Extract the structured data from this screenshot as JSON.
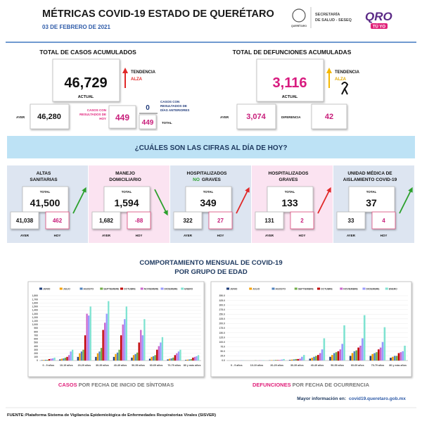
{
  "header": {
    "title": "MÉTRICAS COVID-19 ESTADO DE QUERÉTARO",
    "date": "03 DE FEBRERO DE 2021",
    "seal_caption": "QUERÉTARO",
    "secretaria": [
      "SECRETARÍA",
      "DE SALUD - SESEQ"
    ],
    "brand": "QRO",
    "brand_sub": "TÚ YO"
  },
  "cases": {
    "title": "TOTAL DE CASOS ACUMULADOS",
    "actual": "46,729",
    "actual_label": "ACTUAL",
    "trend_label": "TENDENCIA",
    "trend": "ALZA",
    "ayer_label": "AYER",
    "ayer": "46,280",
    "today_label": [
      "CASOS CON",
      "RESULTADOS DE",
      "HOY"
    ],
    "today": "449",
    "previous": "0",
    "previous_label": [
      "CASOS CON",
      "RESULTADOS DE",
      "DÍAS ANTERIORES"
    ],
    "total": "449",
    "total_label": "TOTAL"
  },
  "deaths": {
    "title": "TOTAL DE DEFUNCIONES ACUMULADAS",
    "actual": "3,116",
    "actual_label": "ACTUAL",
    "trend_label": "TENDENCIA",
    "trend": "ALZA",
    "ayer_label": "AYER",
    "ayer": "3,074",
    "diff_label": "DIFERENCIA",
    "diff": "42"
  },
  "question": "¿CUÁLES SON LAS CIFRAS AL DÍA DE HOY?",
  "cards": [
    {
      "title": [
        "ALTAS",
        "SANITARIAS"
      ],
      "total_label": "TOTAL",
      "total": "41,500",
      "ayer": "41,038",
      "hoy": "462",
      "ayer_label": "AYER",
      "hoy_label": "HOY",
      "trend": "up",
      "arrow_color": "#2ca02c",
      "bg": "#dde5f1"
    },
    {
      "title": [
        "MANEJO",
        "DOMICILIARIO"
      ],
      "total_label": "TOTAL",
      "total": "1,594",
      "ayer": "1,682",
      "hoy": "-88",
      "ayer_label": "AYER",
      "hoy_label": "HOY",
      "trend": "down",
      "arrow_color": "#2ca02c",
      "bg": "#fbe3f1"
    },
    {
      "title": [
        "HOSPITALIZADOS",
        "GRAVES"
      ],
      "title_accent": "NO",
      "accent_color": "#2ca02c",
      "total_label": "TOTAL",
      "total": "349",
      "ayer": "322",
      "hoy": "27",
      "ayer_label": "AYER",
      "hoy_label": "HOY",
      "trend": "up",
      "arrow_color": "#e02828",
      "bg": "#dde5f1"
    },
    {
      "title": [
        "HOSPITALIZADOS",
        "GRAVES"
      ],
      "total_label": "TOTAL",
      "total": "133",
      "ayer": "131",
      "hoy": "2",
      "ayer_label": "AYER",
      "hoy_label": "HOY",
      "trend": "up",
      "arrow_color": "#e02828",
      "bg": "#fbe3f1"
    },
    {
      "title": [
        "UNIDAD MÉDICA DE",
        "AISLAMIENTO COVID-19"
      ],
      "total_label": "TOTAL",
      "total": "37",
      "ayer": "33",
      "hoy": "4",
      "ayer_label": "AYER",
      "hoy_label": "HOY",
      "trend": "up",
      "arrow_color": "#2ca02c",
      "bg": "#dde5f1"
    }
  ],
  "section_title": [
    "COMPORTAMIENTO MENSUAL DE COVID-19",
    "POR GRUPO DE EDAD"
  ],
  "chart_data": [
    {
      "type": "bar",
      "caption_accent": "CASOS",
      "caption": " POR FECHA DE INICIO DE SÍNTOMAS",
      "categories": [
        "0 - 9 años",
        "10-19 años",
        "20-29 años",
        "30-39 años",
        "40-49 años",
        "50-59 años",
        "60-69 años",
        "70-79 años",
        "80 y más años"
      ],
      "ylim": [
        0,
        1800
      ],
      "yticks": [
        0,
        100,
        200,
        300,
        400,
        500,
        600,
        700,
        800,
        900,
        {
          "value": 1000,
          "label": "1,000"
        },
        {
          "value": 1100,
          "label": "1,100"
        },
        {
          "value": 1200,
          "label": "1,200"
        },
        {
          "value": 1300,
          "label": "1,300"
        },
        {
          "value": 1400,
          "label": "1,400"
        },
        {
          "value": 1500,
          "label": "1,500"
        },
        {
          "value": 1600,
          "label": "1,600"
        },
        {
          "value": 1700,
          "label": "1,700"
        },
        {
          "value": 1800,
          "label": "1,800"
        }
      ],
      "series": [
        {
          "name": "JUNIO",
          "color": "#1f3d7a",
          "values": [
            10,
            30,
            100,
            100,
            100,
            80,
            50,
            30,
            15
          ]
        },
        {
          "name": "JULIO",
          "color": "#f4a000",
          "values": [
            15,
            50,
            200,
            200,
            180,
            150,
            100,
            50,
            25
          ]
        },
        {
          "name": "AGOSTO",
          "color": "#4f81bd",
          "values": [
            20,
            60,
            250,
            250,
            220,
            180,
            120,
            60,
            30
          ]
        },
        {
          "name": "SEPTIEMBRE",
          "color": "#70ad47",
          "values": [
            20,
            80,
            300,
            350,
            300,
            220,
            150,
            80,
            40
          ]
        },
        {
          "name": "OCTUBRE",
          "color": "#c00000",
          "values": [
            40,
            100,
            700,
            850,
            700,
            500,
            300,
            150,
            80
          ]
        },
        {
          "name": "NOVIEMBRE",
          "color": "#cc66cc",
          "values": [
            50,
            150,
            1300,
            1050,
            1000,
            850,
            400,
            200,
            100
          ]
        },
        {
          "name": "DICIEMBRE",
          "color": "#9999ff",
          "values": [
            60,
            250,
            1250,
            1300,
            1150,
            700,
            500,
            250,
            120
          ]
        },
        {
          "name": "ENERO",
          "color": "#7fe3d1",
          "values": [
            80,
            300,
            1500,
            1650,
            1500,
            1150,
            650,
            300,
            150
          ]
        }
      ]
    },
    {
      "type": "bar",
      "caption_accent": "DEFUNCIONES",
      "caption": " POR FECHA DE OCURRENCIA",
      "categories": [
        "0 - 9 años",
        "10-19 años",
        "20-29 años",
        "30-39 años",
        "40-49 años",
        "50-59 años",
        "60-69 años",
        "70-79 años",
        "80 y más años"
      ],
      "ylim": [
        0,
        350
      ],
      "yticks": [
        {
          "value": 0,
          "label": "0.0"
        },
        {
          "value": 25,
          "label": "25.0"
        },
        {
          "value": 50,
          "label": "50.0"
        },
        {
          "value": 75,
          "label": "75.0"
        },
        {
          "value": 100,
          "label": "100.0"
        },
        {
          "value": 125,
          "label": "125.0"
        },
        {
          "value": 150,
          "label": "150.0"
        },
        {
          "value": 175,
          "label": "175.0"
        },
        {
          "value": 200,
          "label": "200.0"
        },
        {
          "value": 225,
          "label": "225.0"
        },
        {
          "value": 250,
          "label": "250.0"
        },
        {
          "value": 275,
          "label": "275.0"
        },
        {
          "value": 300,
          "label": "300.0"
        },
        {
          "value": 325,
          "label": "325.0"
        },
        {
          "value": 350,
          "label": "350.0"
        }
      ],
      "series": [
        {
          "name": "JUNIO",
          "color": "#1f3d7a",
          "values": [
            0,
            0,
            1,
            3,
            10,
            20,
            25,
            25,
            15
          ]
        },
        {
          "name": "JULIO",
          "color": "#f4a000",
          "values": [
            0,
            0,
            2,
            5,
            15,
            30,
            40,
            35,
            20
          ]
        },
        {
          "name": "AGOSTO",
          "color": "#4f81bd",
          "values": [
            0,
            0,
            2,
            6,
            20,
            40,
            50,
            40,
            25
          ]
        },
        {
          "name": "SEPTIEMBRE",
          "color": "#70ad47",
          "values": [
            0,
            1,
            3,
            8,
            25,
            45,
            55,
            45,
            25
          ]
        },
        {
          "name": "OCTUBRE",
          "color": "#c00000",
          "values": [
            0,
            0,
            2,
            8,
            30,
            50,
            70,
            60,
            40
          ]
        },
        {
          "name": "NOVIEMBRE",
          "color": "#cc66cc",
          "values": [
            0,
            1,
            3,
            10,
            40,
            60,
            80,
            70,
            45
          ]
        },
        {
          "name": "DICIEMBRE",
          "color": "#9999ff",
          "values": [
            1,
            1,
            5,
            20,
            60,
            90,
            120,
            100,
            50
          ]
        },
        {
          "name": "ENERO",
          "color": "#7fe3d1",
          "values": [
            1,
            2,
            8,
            30,
            120,
            190,
            245,
            180,
            80
          ]
        }
      ]
    }
  ],
  "footer": {
    "more_label": "Mayor información en:",
    "url": "covid19.queretaro.gob.mx",
    "source_label": "FUENTE:",
    "source": "Plataforma Sistema de Vigilancia Epidemiológica de Enfermedades Respiratorias Virales (SISVER)"
  }
}
